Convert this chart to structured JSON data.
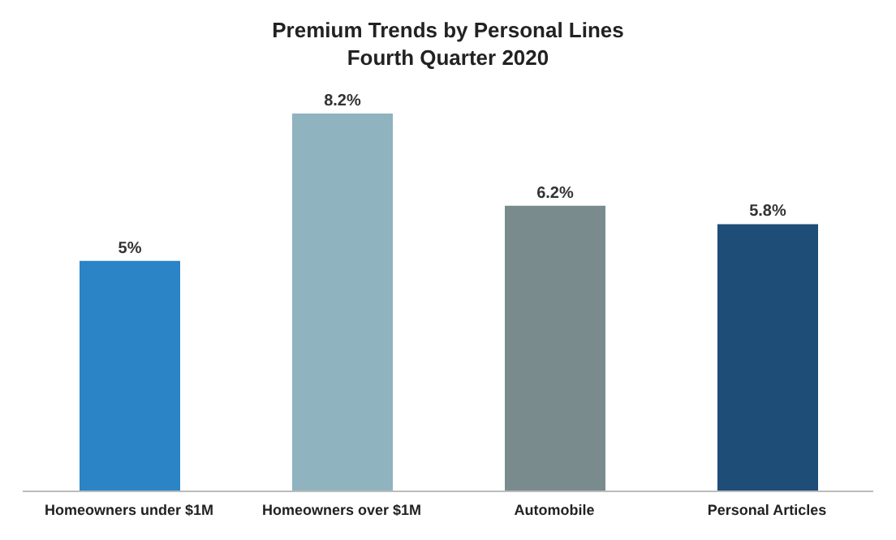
{
  "chart_data": {
    "type": "bar",
    "title": "Premium Trends by Personal Lines",
    "subtitle": "Fourth Quarter 2020",
    "categories": [
      "Homeowners under $1M",
      "Homeowners over $1M",
      "Automobile",
      "Personal Articles"
    ],
    "values": [
      5,
      8.2,
      6.2,
      5.8
    ],
    "value_labels": [
      "5%",
      "8.2%",
      "6.2%",
      "5.8%"
    ],
    "colors": [
      "#2a84c6",
      "#8fb3bf",
      "#7a8b8e",
      "#1e4d78"
    ]
  }
}
